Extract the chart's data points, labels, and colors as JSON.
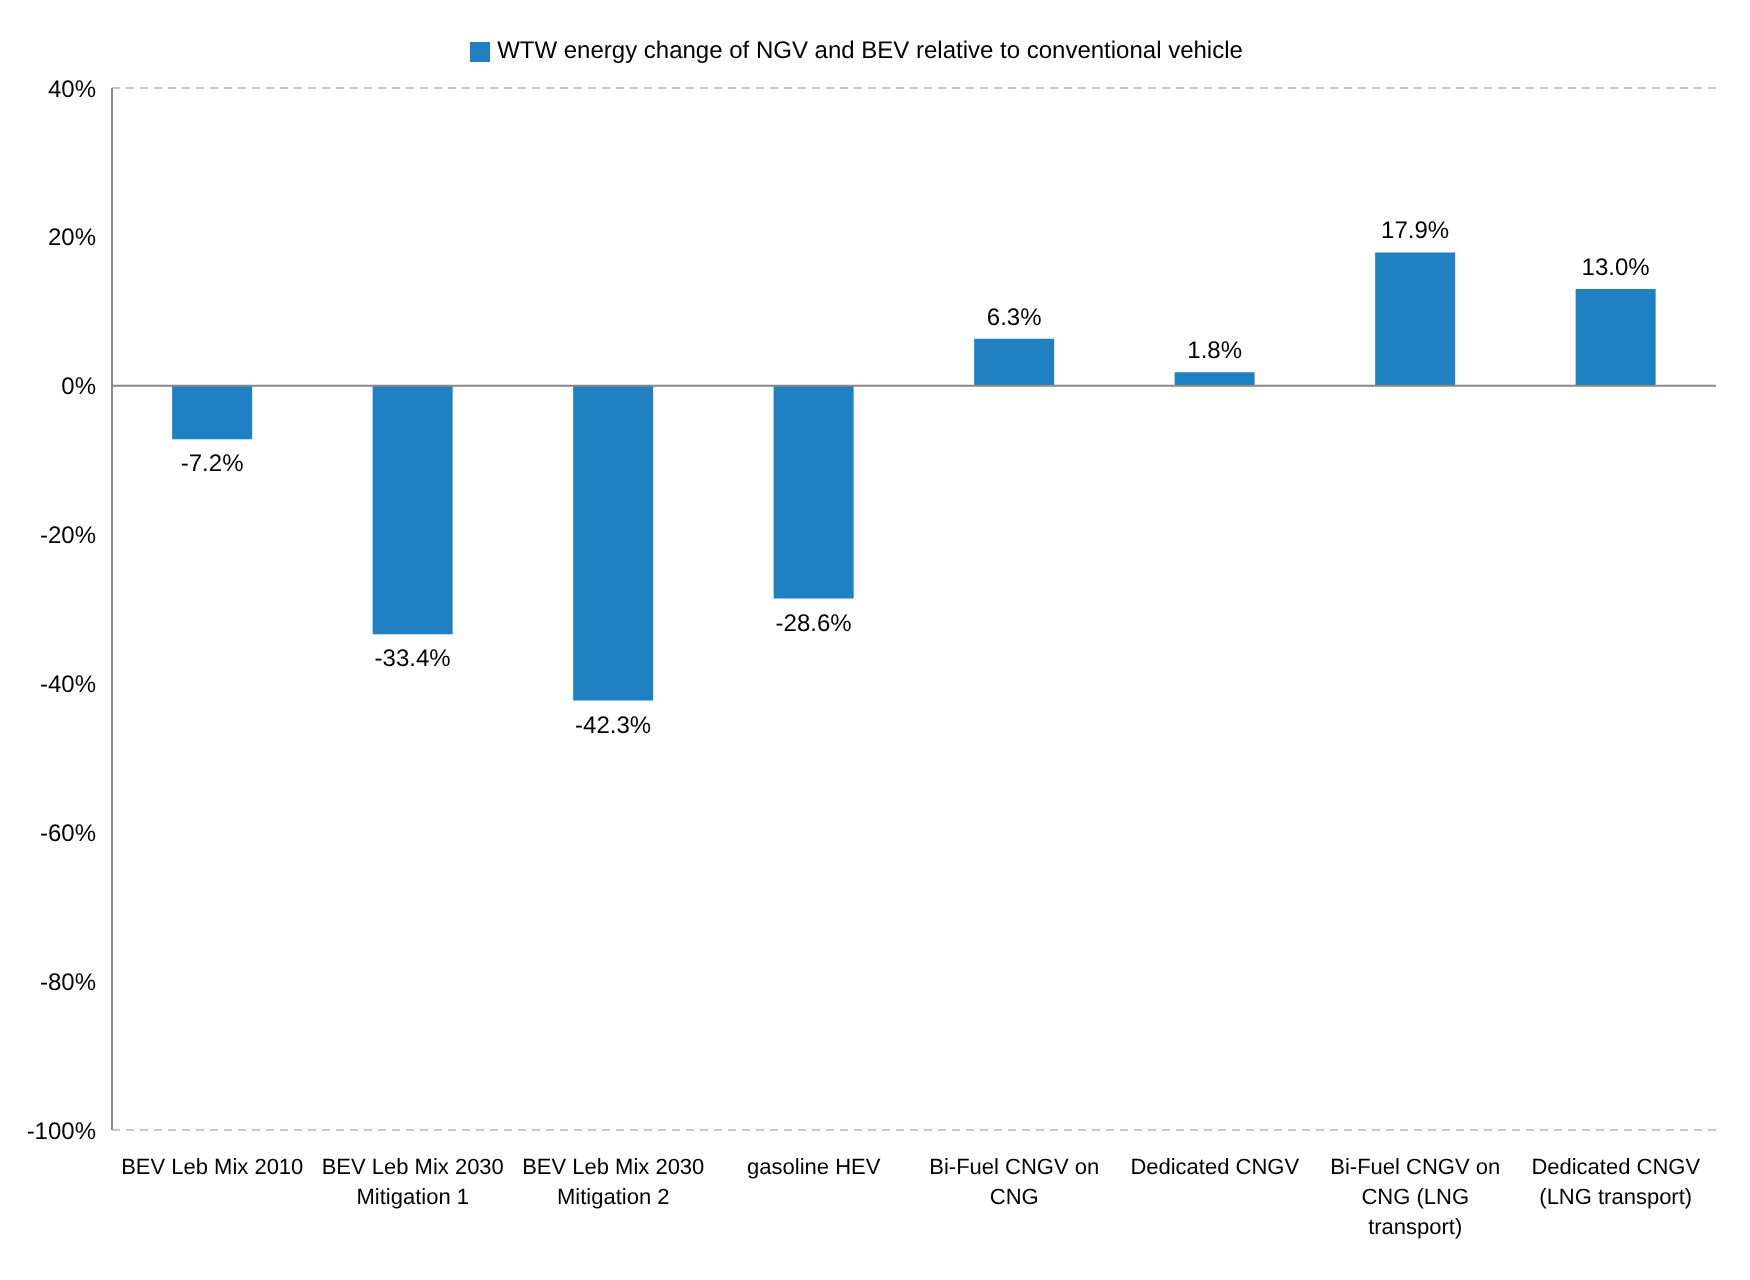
{
  "chart_data": {
    "type": "bar",
    "categories": [
      "BEV Leb Mix 2010",
      "BEV Leb Mix 2030 Mitigation 1",
      "BEV Leb Mix 2030 Mitigation 2",
      "gasoline HEV",
      "Bi-Fuel CNGV on CNG",
      "Dedicated CNGV",
      "Bi-Fuel CNGV on CNG (LNG transport)",
      "Dedicated CNGV (LNG transport)"
    ],
    "series": [
      {
        "name": "WTW energy change of NGV and BEV relative to conventional vehicle",
        "color": "#1f80c2",
        "values": [
          -7.2,
          -33.4,
          -42.3,
          -28.6,
          6.3,
          1.8,
          17.9,
          13.0
        ],
        "value_labels": [
          "-7.2%",
          "-33.4%",
          "-42.3%",
          "-28.6%",
          "6.3%",
          "1.8%",
          "17.9%",
          "13.0%"
        ]
      }
    ],
    "ylim": [
      -100,
      40
    ],
    "yticks": [
      {
        "value": -100,
        "label": "-100%"
      },
      {
        "value": -80,
        "label": "-80%"
      },
      {
        "value": -60,
        "label": "-60%"
      },
      {
        "value": -40,
        "label": "-40%"
      },
      {
        "value": -20,
        "label": "-20%"
      },
      {
        "value": 0,
        "label": "0%"
      },
      {
        "value": 20,
        "label": "20%"
      },
      {
        "value": 40,
        "label": "40%"
      }
    ],
    "grid": "y",
    "legend": "top"
  }
}
